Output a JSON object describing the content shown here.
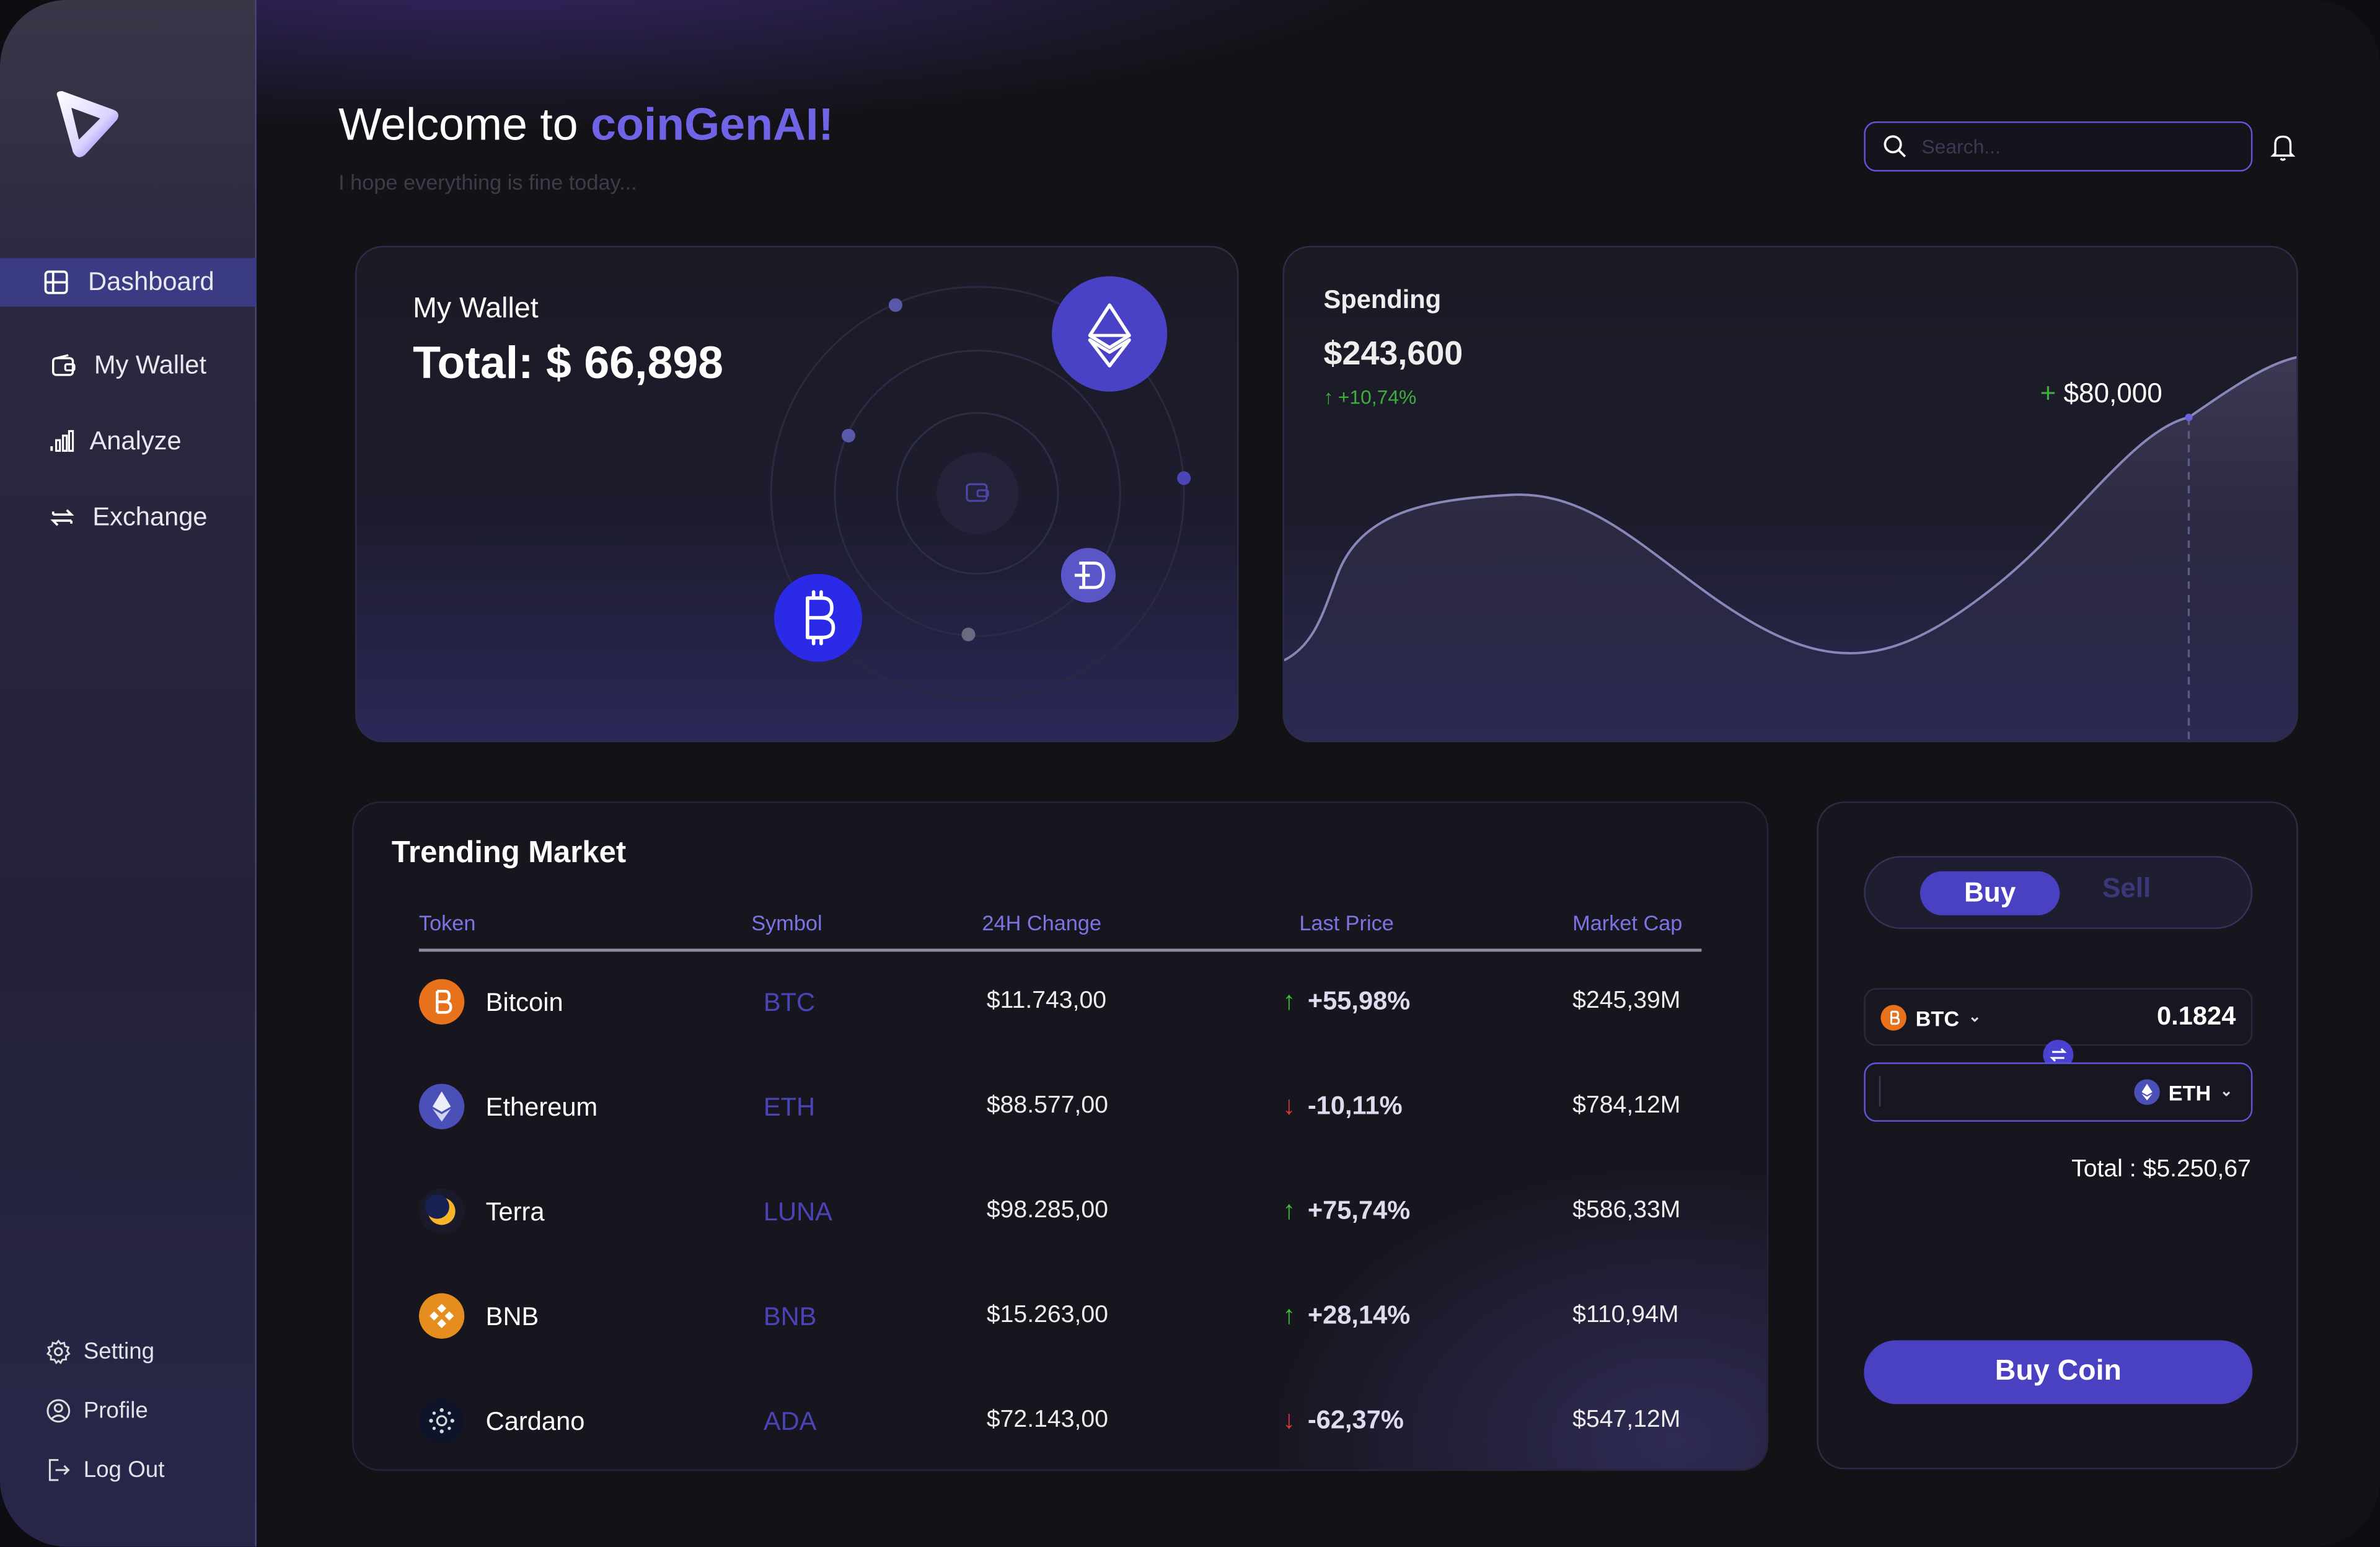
{
  "header": {
    "welcome_prefix": "Welcome to ",
    "brand": "coinGenAI!",
    "subtitle": "I hope everything is fine today..."
  },
  "search": {
    "placeholder": "Search..."
  },
  "sidebar": {
    "items": [
      {
        "label": "Dashboard",
        "icon": "dashboard-icon",
        "active": true
      },
      {
        "label": "My Wallet",
        "icon": "wallet-icon"
      },
      {
        "label": "Analyze",
        "icon": "chart-bars-icon"
      },
      {
        "label": "Exchange",
        "icon": "exchange-icon"
      }
    ],
    "bottom": [
      {
        "label": "Setting",
        "icon": "gear-icon"
      },
      {
        "label": "Profile",
        "icon": "user-icon"
      },
      {
        "label": "Log Out",
        "icon": "logout-icon"
      }
    ]
  },
  "wallet": {
    "title": "My Wallet",
    "total": "Total:  $ 66,898"
  },
  "spending": {
    "title": "Spending",
    "amount": "$243,600",
    "change": "+10,74%",
    "peak_label": "$80,000"
  },
  "market": {
    "title": "Trending Market",
    "headers": {
      "token": "Token",
      "symbol": "Symbol",
      "change": "24H Change",
      "price": "Last Price",
      "cap": "Market Cap"
    },
    "rows": [
      {
        "name": "Bitcoin",
        "symbol": "BTC",
        "price": "$11.743,00",
        "change": "+55,98%",
        "direction": "up",
        "cap": "$245,39M"
      },
      {
        "name": "Ethereum",
        "symbol": "ETH",
        "price": "$88.577,00",
        "change": "-10,11%",
        "direction": "down",
        "cap": "$784,12M"
      },
      {
        "name": "Terra",
        "symbol": "LUNA",
        "price": "$98.285,00",
        "change": "+75,74%",
        "direction": "up",
        "cap": "$586,33M"
      },
      {
        "name": "BNB",
        "symbol": "BNB",
        "price": "$15.263,00",
        "change": "+28,14%",
        "direction": "up",
        "cap": "$110,94M"
      },
      {
        "name": "Cardano",
        "symbol": "ADA",
        "price": "$72.143,00",
        "change": "-62,37%",
        "direction": "down",
        "cap": "$547,12M"
      }
    ]
  },
  "trade": {
    "buy_label": "Buy",
    "sell_label": "Sell",
    "from_currency": "BTC",
    "from_amount": "0.1824",
    "to_currency": "ETH",
    "total": "Total : $5.250,67",
    "button": "Buy Coin"
  },
  "colors": {
    "accent": "#4a41c2",
    "brand": "#6f63e6",
    "up": "#39c339",
    "down": "#e03535"
  }
}
